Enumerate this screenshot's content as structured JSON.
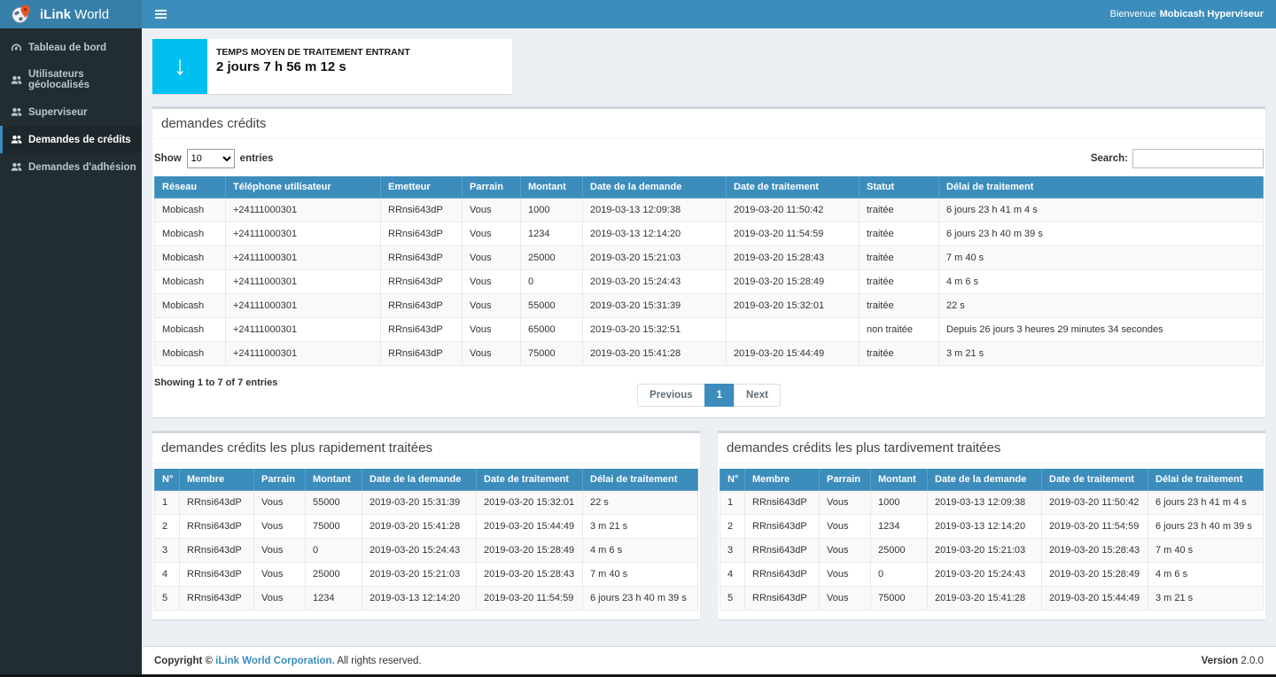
{
  "app": {
    "brand_bold": "iLink",
    "brand_rest": " World",
    "welcome_prefix": "Bienvenue",
    "welcome_user": "Mobicash Hyperviseur"
  },
  "sidebar": {
    "items": [
      {
        "label": "Tableau de bord",
        "icon": "dashboard-icon",
        "active": false
      },
      {
        "label": "Utilisateurs géolocalisés",
        "icon": "users-icon",
        "active": false
      },
      {
        "label": "Superviseur",
        "icon": "users-icon",
        "active": false
      },
      {
        "label": "Demandes de crédits",
        "icon": "users-icon",
        "active": true
      },
      {
        "label": "Demandes d'adhésion",
        "icon": "users-icon",
        "active": false
      }
    ]
  },
  "statbox": {
    "icon": "arrow-down-icon",
    "icon_glyph": "↓",
    "icon_color": "#00c0ef",
    "label": "TEMPS MOYEN DE TRAITEMENT ENTRANT",
    "value": "2 jours 7 h 56 m 12 s"
  },
  "main_table": {
    "title": "demandes crédits",
    "show_label": "Show",
    "page_length": "10",
    "entries_label": "entries",
    "search_label": "Search:",
    "search_value": "",
    "columns": [
      "Réseau",
      "Téléphone utilisateur",
      "Emetteur",
      "Parrain",
      "Montant",
      "Date de la demande",
      "Date de traitement",
      "Statut",
      "Délai de traitement"
    ],
    "rows": [
      [
        "Mobicash",
        "+24111000301",
        "RRnsi643dP",
        "Vous",
        "1000",
        "2019-03-13 12:09:38",
        "2019-03-20 11:50:42",
        "traitée",
        "6 jours 23 h 41 m 4 s"
      ],
      [
        "Mobicash",
        "+24111000301",
        "RRnsi643dP",
        "Vous",
        "1234",
        "2019-03-13 12:14:20",
        "2019-03-20 11:54:59",
        "traitée",
        "6 jours 23 h 40 m 39 s"
      ],
      [
        "Mobicash",
        "+24111000301",
        "RRnsi643dP",
        "Vous",
        "25000",
        "2019-03-20 15:21:03",
        "2019-03-20 15:28:43",
        "traitée",
        "7 m 40 s"
      ],
      [
        "Mobicash",
        "+24111000301",
        "RRnsi643dP",
        "Vous",
        "0",
        "2019-03-20 15:24:43",
        "2019-03-20 15:28:49",
        "traitée",
        "4 m 6 s"
      ],
      [
        "Mobicash",
        "+24111000301",
        "RRnsi643dP",
        "Vous",
        "55000",
        "2019-03-20 15:31:39",
        "2019-03-20 15:32:01",
        "traitée",
        "22 s"
      ],
      [
        "Mobicash",
        "+24111000301",
        "RRnsi643dP",
        "Vous",
        "65000",
        "2019-03-20 15:32:51",
        "",
        "non traitée",
        "Depuis 26 jours 3 heures 29 minutes 34 secondes"
      ],
      [
        "Mobicash",
        "+24111000301",
        "RRnsi643dP",
        "Vous",
        "75000",
        "2019-03-20 15:41:28",
        "2019-03-20 15:44:49",
        "traitée",
        "3 m 21 s"
      ]
    ],
    "summary": "Showing 1 to 7 of 7 entries",
    "pagination": {
      "previous": "Previous",
      "page": "1",
      "next": "Next"
    }
  },
  "fast_table": {
    "title": "demandes crédits les plus rapidement traitées",
    "columns": [
      "N°",
      "Membre",
      "Parrain",
      "Montant",
      "Date de la demande",
      "Date de traitement",
      "Délai de traitement"
    ],
    "rows": [
      [
        "1",
        "RRnsi643dP",
        "Vous",
        "55000",
        "2019-03-20 15:31:39",
        "2019-03-20 15:32:01",
        "22 s"
      ],
      [
        "2",
        "RRnsi643dP",
        "Vous",
        "75000",
        "2019-03-20 15:41:28",
        "2019-03-20 15:44:49",
        "3 m 21 s"
      ],
      [
        "3",
        "RRnsi643dP",
        "Vous",
        "0",
        "2019-03-20 15:24:43",
        "2019-03-20 15:28:49",
        "4 m 6 s"
      ],
      [
        "4",
        "RRnsi643dP",
        "Vous",
        "25000",
        "2019-03-20 15:21:03",
        "2019-03-20 15:28:43",
        "7 m 40 s"
      ],
      [
        "5",
        "RRnsi643dP",
        "Vous",
        "1234",
        "2019-03-13 12:14:20",
        "2019-03-20 11:54:59",
        "6 jours 23 h 40 m 39 s"
      ]
    ]
  },
  "late_table": {
    "title": "demandes crédits les plus tardivement traitées",
    "columns": [
      "N°",
      "Membre",
      "Parrain",
      "Montant",
      "Date de la demande",
      "Date de traitement",
      "Délai de traitement"
    ],
    "rows": [
      [
        "1",
        "RRnsi643dP",
        "Vous",
        "1000",
        "2019-03-13 12:09:38",
        "2019-03-20 11:50:42",
        "6 jours 23 h 41 m 4 s"
      ],
      [
        "2",
        "RRnsi643dP",
        "Vous",
        "1234",
        "2019-03-13 12:14:20",
        "2019-03-20 11:54:59",
        "6 jours 23 h 40 m 39 s"
      ],
      [
        "3",
        "RRnsi643dP",
        "Vous",
        "25000",
        "2019-03-20 15:21:03",
        "2019-03-20 15:28:43",
        "7 m 40 s"
      ],
      [
        "4",
        "RRnsi643dP",
        "Vous",
        "0",
        "2019-03-20 15:24:43",
        "2019-03-20 15:28:49",
        "4 m 6 s"
      ],
      [
        "5",
        "RRnsi643dP",
        "Vous",
        "75000",
        "2019-03-20 15:41:28",
        "2019-03-20 15:44:49",
        "3 m 21 s"
      ]
    ]
  },
  "footer": {
    "copyright_prefix": "Copyright © ",
    "company_link": "iLink World Corporation.",
    "rights": " All rights reserved.",
    "version_label": "Version",
    "version_value": " 2.0.0"
  },
  "colors": {
    "navbar": "#3c8dbc",
    "logo_bg": "#367fa9",
    "sidebar_bg": "#222d32",
    "sidebar_active_bg": "#1e282c",
    "sidebar_text": "#b8c7ce",
    "content_bg": "#ecf0f5",
    "table_header_bg": "#3c8dbc",
    "stripe": "#f9f9f9",
    "info_icon_bg": "#00c0ef",
    "pagination_active": "#3c8dbc"
  }
}
